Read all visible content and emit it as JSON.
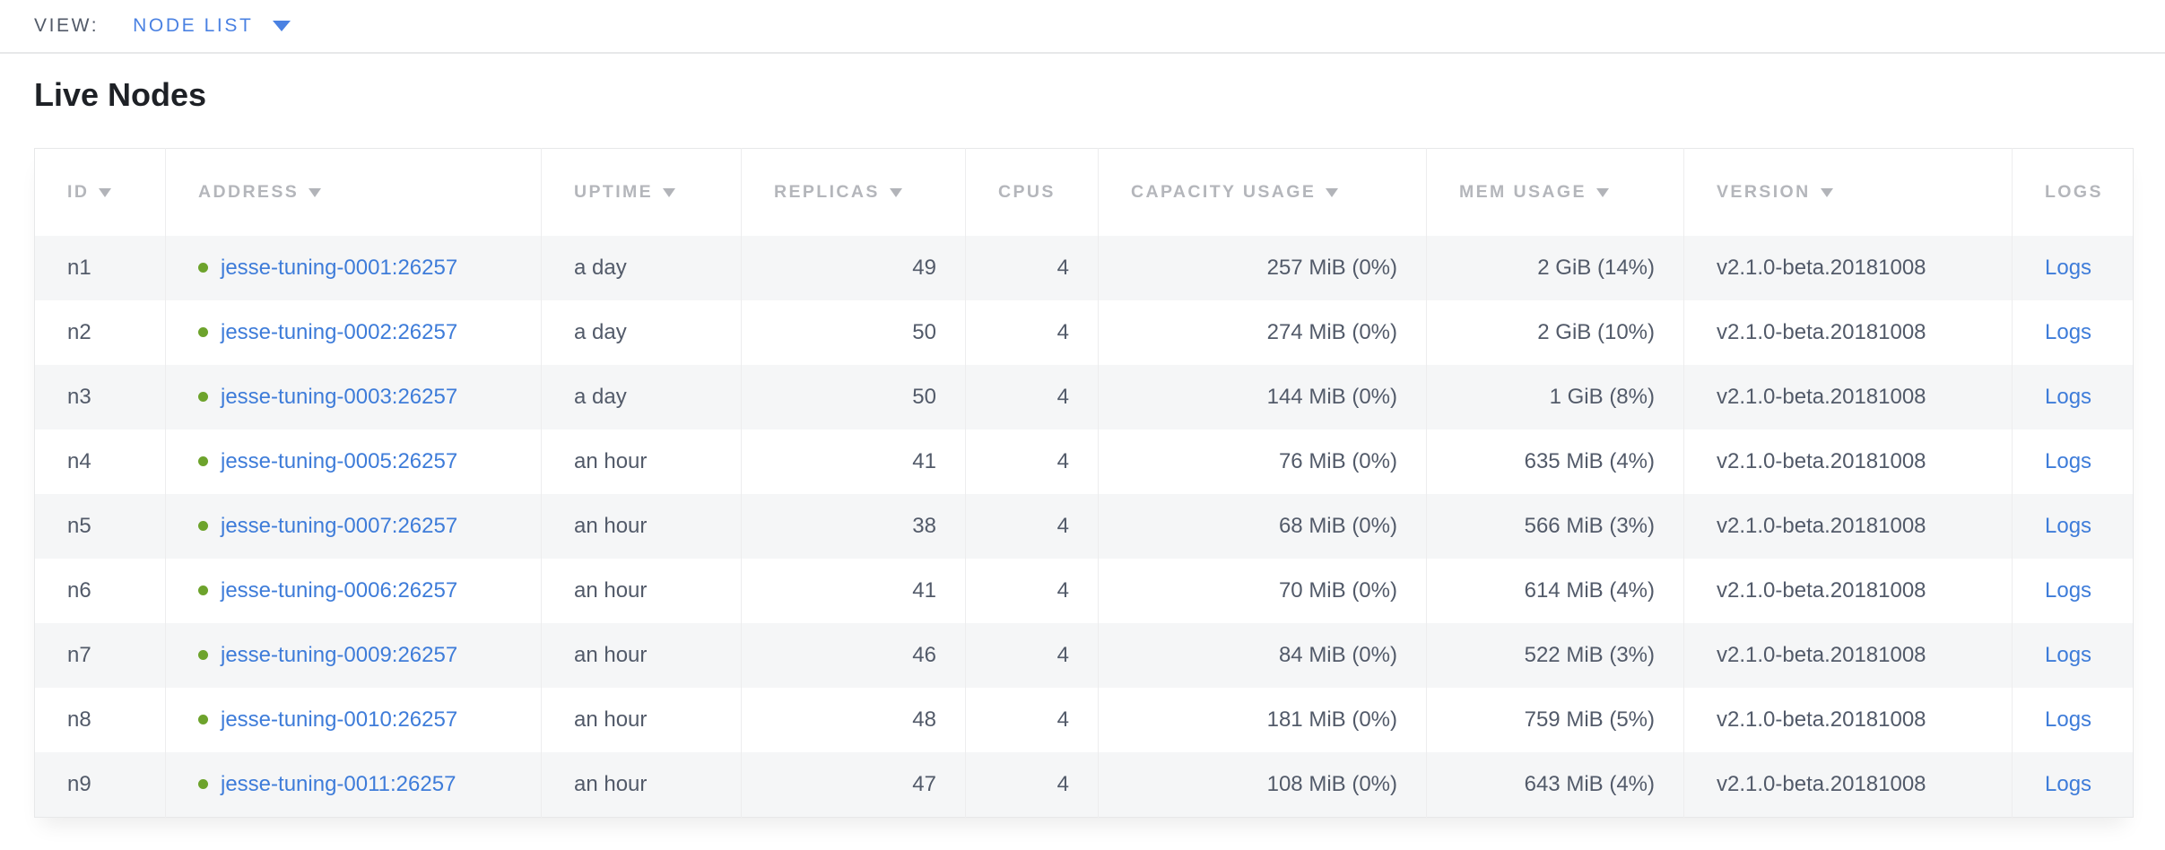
{
  "view_bar": {
    "label": "VIEW:",
    "selected": "NODE LIST"
  },
  "page": {
    "title": "Live Nodes"
  },
  "table": {
    "columns": [
      {
        "key": "id",
        "label": "ID",
        "sortable": true
      },
      {
        "key": "address",
        "label": "ADDRESS",
        "sortable": true
      },
      {
        "key": "uptime",
        "label": "UPTIME",
        "sortable": true
      },
      {
        "key": "replicas",
        "label": "REPLICAS",
        "sortable": true
      },
      {
        "key": "cpus",
        "label": "CPUS",
        "sortable": false
      },
      {
        "key": "capacity",
        "label": "CAPACITY USAGE",
        "sortable": true
      },
      {
        "key": "mem",
        "label": "MEM USAGE",
        "sortable": true
      },
      {
        "key": "version",
        "label": "VERSION",
        "sortable": true
      },
      {
        "key": "logs",
        "label": "LOGS",
        "sortable": false
      }
    ],
    "rows": [
      {
        "id": "n1",
        "status": "live",
        "address": "jesse-tuning-0001:26257",
        "uptime": "a day",
        "replicas": "49",
        "cpus": "4",
        "capacity": "257 MiB (0%)",
        "mem": "2 GiB (14%)",
        "version": "v2.1.0-beta.20181008",
        "logs": "Logs"
      },
      {
        "id": "n2",
        "status": "live",
        "address": "jesse-tuning-0002:26257",
        "uptime": "a day",
        "replicas": "50",
        "cpus": "4",
        "capacity": "274 MiB (0%)",
        "mem": "2 GiB (10%)",
        "version": "v2.1.0-beta.20181008",
        "logs": "Logs"
      },
      {
        "id": "n3",
        "status": "live",
        "address": "jesse-tuning-0003:26257",
        "uptime": "a day",
        "replicas": "50",
        "cpus": "4",
        "capacity": "144 MiB (0%)",
        "mem": "1 GiB (8%)",
        "version": "v2.1.0-beta.20181008",
        "logs": "Logs"
      },
      {
        "id": "n4",
        "status": "live",
        "address": "jesse-tuning-0005:26257",
        "uptime": "an hour",
        "replicas": "41",
        "cpus": "4",
        "capacity": "76 MiB (0%)",
        "mem": "635 MiB (4%)",
        "version": "v2.1.0-beta.20181008",
        "logs": "Logs"
      },
      {
        "id": "n5",
        "status": "live",
        "address": "jesse-tuning-0007:26257",
        "uptime": "an hour",
        "replicas": "38",
        "cpus": "4",
        "capacity": "68 MiB (0%)",
        "mem": "566 MiB (3%)",
        "version": "v2.1.0-beta.20181008",
        "logs": "Logs"
      },
      {
        "id": "n6",
        "status": "live",
        "address": "jesse-tuning-0006:26257",
        "uptime": "an hour",
        "replicas": "41",
        "cpus": "4",
        "capacity": "70 MiB (0%)",
        "mem": "614 MiB (4%)",
        "version": "v2.1.0-beta.20181008",
        "logs": "Logs"
      },
      {
        "id": "n7",
        "status": "live",
        "address": "jesse-tuning-0009:26257",
        "uptime": "an hour",
        "replicas": "46",
        "cpus": "4",
        "capacity": "84 MiB (0%)",
        "mem": "522 MiB (3%)",
        "version": "v2.1.0-beta.20181008",
        "logs": "Logs"
      },
      {
        "id": "n8",
        "status": "live",
        "address": "jesse-tuning-0010:26257",
        "uptime": "an hour",
        "replicas": "48",
        "cpus": "4",
        "capacity": "181 MiB (0%)",
        "mem": "759 MiB (5%)",
        "version": "v2.1.0-beta.20181008",
        "logs": "Logs"
      },
      {
        "id": "n9",
        "status": "live",
        "address": "jesse-tuning-0011:26257",
        "uptime": "an hour",
        "replicas": "47",
        "cpus": "4",
        "capacity": "108 MiB (0%)",
        "mem": "643 MiB (4%)",
        "version": "v2.1.0-beta.20181008",
        "logs": "Logs"
      }
    ]
  },
  "colors": {
    "accent_blue": "#4a81e2",
    "link_blue": "#3e7cd9",
    "live_dot_green": "#6da32c",
    "header_gray": "#b4b6bb",
    "cell_text": "#525a69",
    "stripe_gray": "#f5f6f7",
    "border_gray": "#e7e8e9"
  }
}
